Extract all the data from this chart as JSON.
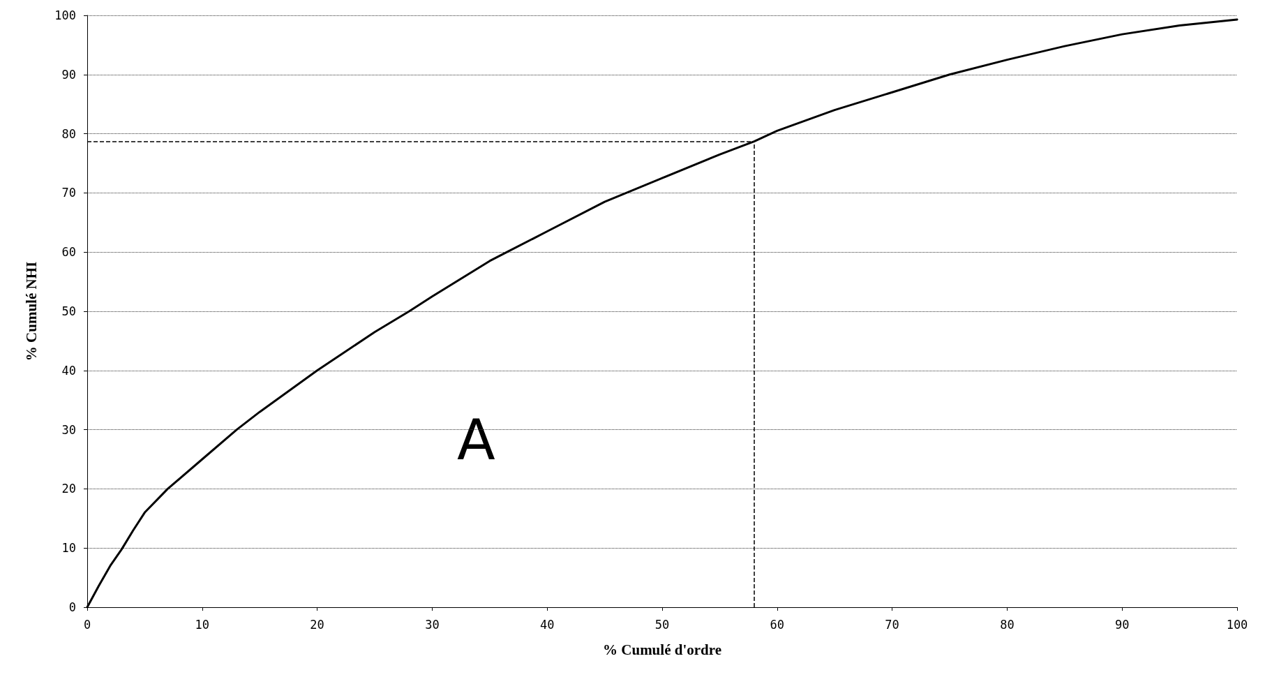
{
  "chart_data": {
    "type": "line",
    "xlabel": "% Cumulé d'ordre",
    "ylabel": "% Cumulé NHI",
    "x": [
      0,
      1,
      2,
      3,
      4,
      5,
      7,
      10,
      13,
      15,
      20,
      25,
      28,
      30,
      35,
      36.5,
      40,
      45,
      50,
      55,
      58,
      60,
      65,
      70,
      75,
      80,
      85,
      90,
      95,
      100
    ],
    "series": [
      {
        "color": "#000000",
        "values": [
          0,
          3.6,
          7,
          9.8,
          13,
          16,
          20,
          25,
          30,
          33,
          40,
          46.5,
          50,
          52.5,
          58.5,
          60,
          63.5,
          68.5,
          72.5,
          76.5,
          78.7,
          80.5,
          84,
          87,
          90,
          92.5,
          94.8,
          96.8,
          98.3,
          99.3
        ]
      }
    ],
    "xlim": [
      0,
      100
    ],
    "xticks": [
      0,
      10,
      20,
      30,
      40,
      50,
      60,
      70,
      80,
      90,
      100
    ],
    "ylim": [
      0,
      100
    ],
    "yticks": [
      0,
      10,
      20,
      30,
      40,
      50,
      60,
      70,
      80,
      90,
      100
    ],
    "grid": "y",
    "marker": "none",
    "line_style": "solid",
    "ref_lines": [
      {
        "axis": "x",
        "value": 58,
        "line_style": "dashed",
        "color": "#000000"
      },
      {
        "axis": "y",
        "value": 78.7,
        "line_style": "dashed",
        "color": "#000000"
      }
    ],
    "annotations": [
      "A"
    ]
  }
}
